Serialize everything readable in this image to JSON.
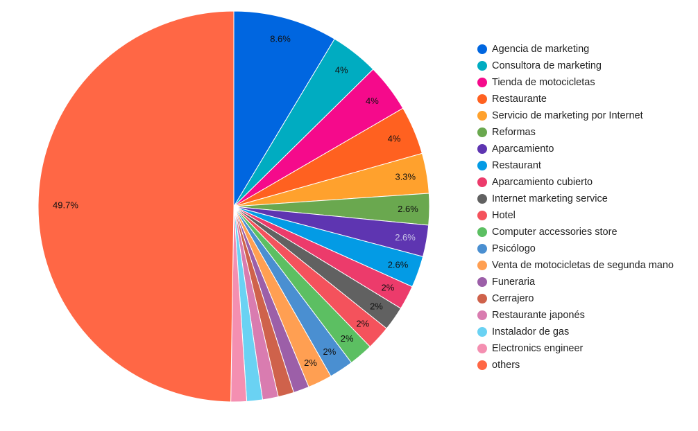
{
  "chart_data": {
    "type": "pie",
    "start_angle": "12 o'clock",
    "direction": "clockwise",
    "legend_position": "right",
    "slices": [
      {
        "label": "Agencia de marketing",
        "value": 8.6,
        "value_label": "8.6%",
        "color": "#0066e0",
        "label_color": "#111111"
      },
      {
        "label": "Consultora de marketing",
        "value": 4,
        "value_label": "4%",
        "color": "#00acc1",
        "label_color": "#111111"
      },
      {
        "label": "Tienda de motocicletas",
        "value": 4,
        "value_label": "4%",
        "color": "#f50a8b",
        "label_color": "#111111"
      },
      {
        "label": "Restaurante",
        "value": 4,
        "value_label": "4%",
        "color": "#ff6120",
        "label_color": "#111111"
      },
      {
        "label": "Servicio de marketing por Internet",
        "value": 3.3,
        "value_label": "3.3%",
        "color": "#ffa12d",
        "label_color": "#111111"
      },
      {
        "label": "Reformas",
        "value": 2.6,
        "value_label": "2.6%",
        "color": "#6aa84f",
        "label_color": "#111111"
      },
      {
        "label": "Aparcamiento",
        "value": 2.6,
        "value_label": "2.6%",
        "color": "#5e35b1",
        "label_color": "#c9c3e6"
      },
      {
        "label": "Restaurant",
        "value": 2.6,
        "value_label": "2.6%",
        "color": "#039be5",
        "label_color": "#111111"
      },
      {
        "label": "Aparcamiento cubierto",
        "value": 2,
        "value_label": "2%",
        "color": "#ec3b6b",
        "label_color": "#111111"
      },
      {
        "label": "Internet marketing service",
        "value": 2,
        "value_label": "2%",
        "color": "#616161",
        "label_color": "#111111"
      },
      {
        "label": "Hotel",
        "value": 2,
        "value_label": "2%",
        "color": "#f4525c",
        "label_color": "#111111"
      },
      {
        "label": "Computer accessories store",
        "value": 2,
        "value_label": "2%",
        "color": "#5cbf62",
        "label_color": "#111111"
      },
      {
        "label": "Psicólogo",
        "value": 2,
        "value_label": "2%",
        "color": "#4a8fd1",
        "label_color": "#111111"
      },
      {
        "label": "Venta de motocicletas de segunda mano",
        "value": 2,
        "value_label": "2%",
        "color": "#ff9f52",
        "label_color": "#111111"
      },
      {
        "label": "Funeraria",
        "value": 1.3,
        "value_label": "",
        "color": "#9c5fa8",
        "label_color": "#111111"
      },
      {
        "label": "Cerrajero",
        "value": 1.3,
        "value_label": "",
        "color": "#cf624b",
        "label_color": "#111111"
      },
      {
        "label": "Restaurante japonés",
        "value": 1.3,
        "value_label": "",
        "color": "#d97cb0",
        "label_color": "#111111"
      },
      {
        "label": "Instalador de gas",
        "value": 1.3,
        "value_label": "",
        "color": "#6ad2f3",
        "label_color": "#111111"
      },
      {
        "label": "Electronics engineer",
        "value": 1.3,
        "value_label": "",
        "color": "#f48fb1",
        "label_color": "#111111"
      },
      {
        "label": "others",
        "value": 49.7,
        "value_label": "49.7%",
        "color": "#ff6745",
        "label_color": "#111111"
      }
    ]
  }
}
